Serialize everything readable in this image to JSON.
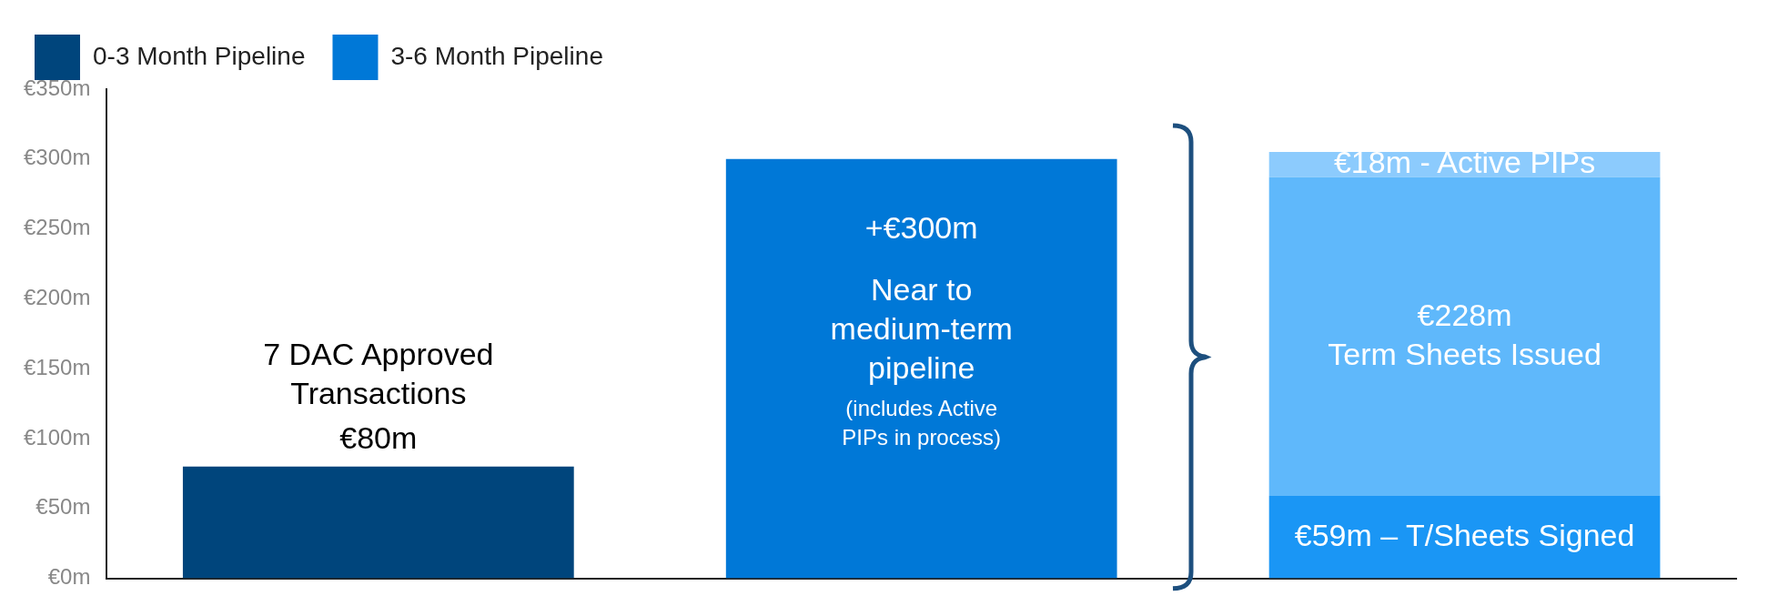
{
  "chart_data": {
    "type": "bar",
    "stacked": true,
    "legend": "top",
    "categories": [
      null,
      null,
      null
    ],
    "series": [
      {
        "name": "0-3 Month Pipeline",
        "color": "#00457c",
        "values": [
          80,
          null,
          null
        ],
        "value_labels": [
          "€80m",
          null,
          null
        ]
      },
      {
        "name": "3-6 Month Pipeline",
        "color": "#0078d7",
        "values": [
          null,
          300,
          null
        ],
        "value_labels": [
          null,
          "+€300m",
          null
        ]
      },
      {
        "color": "#1a96f5",
        "values": [
          null,
          null,
          59
        ],
        "value_labels": [
          null,
          null,
          "€59m – T/Sheets Signed"
        ]
      },
      {
        "color": "#5fb8fb",
        "values": [
          null,
          null,
          228
        ],
        "value_labels": [
          null,
          null,
          "€228m\nTerm Sheets Issued"
        ]
      },
      {
        "color": "#8ccbfd",
        "values": [
          null,
          null,
          18
        ],
        "value_labels": [
          null,
          null,
          "€18m - Active PIPs"
        ]
      }
    ],
    "annotations": [
      "7 DAC Approved\nTransactions",
      "Near to\nmedium-term\npipeline\n(includes Active\nPIPs in process)"
    ],
    "ylim": [
      0,
      350
    ],
    "yticks": [
      {
        "value": 0,
        "label": "€0m"
      },
      {
        "value": 50,
        "label": "€50m"
      },
      {
        "value": 100,
        "label": "€100m"
      },
      {
        "value": 150,
        "label": "€150m"
      },
      {
        "value": 200,
        "label": "€200m"
      },
      {
        "value": 250,
        "label": "€250m"
      },
      {
        "value": 300,
        "label": "€300m"
      },
      {
        "value": 350,
        "label": "€350m"
      }
    ],
    "grid": false
  }
}
